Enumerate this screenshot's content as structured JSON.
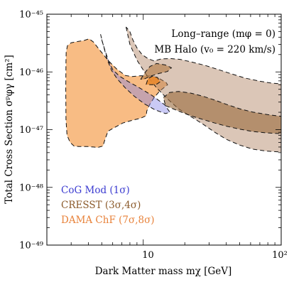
{
  "chart_data": {
    "type": "area",
    "title": "",
    "xlabel": "Dark Matter mass   mχ  [GeV]",
    "ylabel": "Total Cross Section   σᵖφγ [cm²]",
    "xscale": "log",
    "yscale": "log",
    "xlim": [
      2,
      100
    ],
    "ylim": [
      1e-49,
      1e-45
    ],
    "x_tick_labels": [
      {
        "value": 10,
        "label": "10"
      },
      {
        "value": 100,
        "label": "10²"
      }
    ],
    "y_tick_labels": [
      {
        "value": 1e-45,
        "label": "10⁻⁴⁵"
      },
      {
        "value": 1e-46,
        "label": "10⁻⁴⁶"
      },
      {
        "value": 1e-47,
        "label": "10⁻⁴⁷"
      },
      {
        "value": 1e-48,
        "label": "10⁻⁴⁸"
      },
      {
        "value": 1e-49,
        "label": "10⁻⁴⁹"
      }
    ],
    "annotations": [
      "Long–range (mφ = 0)",
      "MB Halo (v₀ = 220 km/s)"
    ],
    "legend_placement": "bottom-left",
    "colors": {
      "cogent": "#8080e8",
      "cresst": "#b08060",
      "dama": "#f5a050"
    },
    "series": [
      {
        "name": "CoG Mod  (1σ)",
        "color": "#3a3ad0",
        "regions": [
          {
            "level": "1σ",
            "points": [
              [
                4.9,
                4.5e-46
              ],
              [
                5.15,
                2.8e-46
              ],
              [
                5.5,
                1.6e-46
              ],
              [
                5.9,
                1.05e-46
              ],
              [
                6.5,
                7.5e-47
              ],
              [
                7.4,
                5.3e-47
              ],
              [
                8.6,
                3.8e-47
              ],
              [
                10.2,
                2.8e-47
              ],
              [
                12.2,
                2.2e-47
              ],
              [
                14.5,
                1.9e-47
              ],
              [
                15.6,
                2e-47
              ],
              [
                14.3,
                2.7e-47
              ],
              [
                11.6,
                3.9e-47
              ],
              [
                9.4,
                5.3e-47
              ],
              [
                7.8,
                6.8e-47
              ],
              [
                6.7,
                8.5e-47
              ],
              [
                6.0,
                1.1e-46
              ],
              [
                5.6,
                1.55e-46
              ],
              [
                5.3,
                2.3e-46
              ],
              [
                5.05,
                3.3e-46
              ]
            ]
          }
        ]
      },
      {
        "name": "CRESST  (3σ,4σ)",
        "color": "#8b5a2b",
        "regions": [
          {
            "level": "4σ",
            "points": [
              [
                7.5,
                6e-46
              ],
              [
                8.0,
                3e-46
              ],
              [
                9.0,
                1.6e-46
              ],
              [
                10.5,
                9e-47
              ],
              [
                12.5,
                5.3e-47
              ],
              [
                15.0,
                3.4e-47
              ],
              [
                18.0,
                2.3e-47
              ],
              [
                22.0,
                1.7e-47
              ],
              [
                27.0,
                1.25e-47
              ],
              [
                33.0,
                9e-48
              ],
              [
                40.0,
                6.8e-48
              ],
              [
                50.0,
                5.4e-48
              ],
              [
                62.0,
                4.6e-48
              ],
              [
                78.0,
                4.25e-48
              ],
              [
                100.0,
                4.1e-48
              ],
              [
                100.0,
                6.2e-47
              ],
              [
                85.0,
                6.4e-47
              ],
              [
                70.0,
                6.9e-47
              ],
              [
                55.0,
                7.8e-47
              ],
              [
                44.0,
                9.2e-47
              ],
              [
                35.0,
                1.1e-46
              ],
              [
                28.0,
                1.3e-46
              ],
              [
                22.0,
                1.5e-46
              ],
              [
                18.5,
                1.65e-46
              ],
              [
                16.0,
                1.7e-46
              ],
              [
                13.5,
                1.68e-46
              ],
              [
                12.0,
                1.55e-46
              ],
              [
                10.8,
                1.7e-46
              ],
              [
                9.8,
                2e-46
              ],
              [
                9.0,
                2.6e-46
              ],
              [
                8.4,
                3.6e-46
              ],
              [
                8.0,
                5e-46
              ]
            ]
          },
          {
            "level": "3σ",
            "points": [
              [
                14.5,
                2.6e-47
              ],
              [
                18.0,
                2.1e-47
              ],
              [
                22.0,
                1.75e-47
              ],
              [
                27.0,
                1.5e-47
              ],
              [
                33.0,
                1.3e-47
              ],
              [
                40.0,
                1.15e-47
              ],
              [
                50.0,
                1.02e-47
              ],
              [
                62.0,
                9.3e-48
              ],
              [
                78.0,
                8.8e-48
              ],
              [
                100.0,
                8.5e-48
              ],
              [
                100.0,
                1.7e-47
              ],
              [
                80.0,
                1.82e-47
              ],
              [
                62.0,
                2.02e-47
              ],
              [
                50.0,
                2.3e-47
              ],
              [
                40.0,
                2.75e-47
              ],
              [
                33.0,
                3.25e-47
              ],
              [
                27.0,
                3.8e-47
              ],
              [
                22.0,
                4.3e-47
              ],
              [
                18.0,
                4.6e-47
              ],
              [
                15.5,
                4.4e-47
              ],
              [
                14.0,
                3.6e-47
              ]
            ]
          },
          {
            "level": "3σ (upper island)",
            "points": [
              [
                9.6,
                7.5e-47
              ],
              [
                10.3,
                9.8e-47
              ],
              [
                11.2,
                1.25e-46
              ],
              [
                12.5,
                1.4e-46
              ],
              [
                14.5,
                1.32e-46
              ],
              [
                16.0,
                1.18e-46
              ],
              [
                15.0,
                1.02e-46
              ],
              [
                13.0,
                9.4e-47
              ],
              [
                11.2,
                8.4e-47
              ],
              [
                10.0,
                7.4e-47
              ]
            ]
          }
        ]
      },
      {
        "name": "DAMA ChF  (7σ,8σ)",
        "color": "#e8823a",
        "regions": [
          {
            "level": "8σ",
            "points": [
              [
                3.72,
                3.5e-46
              ],
              [
                4.05,
                3.75e-46
              ],
              [
                4.35,
                3.3e-46
              ],
              [
                4.9,
                2.3e-46
              ],
              [
                5.6,
                1.55e-46
              ],
              [
                6.4,
                1.13e-46
              ],
              [
                7.4,
                8.7e-47
              ],
              [
                8.3,
                8.3e-47
              ],
              [
                9.6,
                8.6e-47
              ],
              [
                11.1,
                8.5e-47
              ],
              [
                12.7,
                8e-47
              ],
              [
                14.6,
                6.6e-47
              ],
              [
                15.0,
                6e-47
              ],
              [
                13.2,
                4.7e-47
              ],
              [
                12.0,
                3.6e-47
              ],
              [
                11.1,
                2.7e-47
              ],
              [
                10.6,
                2.1e-47
              ],
              [
                10.5,
                1.75e-47
              ],
              [
                9.6,
                1.58e-47
              ],
              [
                8.3,
                1.45e-47
              ],
              [
                7.1,
                1.3e-47
              ],
              [
                6.25,
                1.1e-47
              ],
              [
                5.55,
                9.4e-48
              ],
              [
                5.25,
                6.5e-48
              ],
              [
                5.1,
                5.2e-48
              ],
              [
                4.65,
                4.9e-48
              ],
              [
                4.4,
                5e-48
              ],
              [
                3.95,
                5.1e-48
              ],
              [
                3.4,
                5.1e-48
              ],
              [
                3.15,
                5.2e-48
              ],
              [
                2.95,
                6e-48
              ],
              [
                2.8,
                8e-48
              ],
              [
                2.75,
                1.5e-47
              ],
              [
                2.74,
                5e-47
              ],
              [
                2.75,
                1.5e-46
              ],
              [
                2.76,
                2.2e-46
              ],
              [
                2.82,
                2.85e-46
              ],
              [
                3.0,
                3.2e-46
              ],
              [
                3.3,
                3.35e-46
              ]
            ]
          },
          {
            "level": "7σ",
            "points": [
              [
                10.5,
                6.1e-47
              ],
              [
                10.8,
                7.6e-47
              ],
              [
                11.6,
                8.4e-47
              ],
              [
                12.7,
                8e-47
              ],
              [
                13.2,
                6.7e-47
              ],
              [
                12.6,
                6.2e-47
              ],
              [
                11.6,
                6e-47
              ],
              [
                10.9,
                6.05e-47
              ]
            ]
          }
        ]
      }
    ]
  }
}
